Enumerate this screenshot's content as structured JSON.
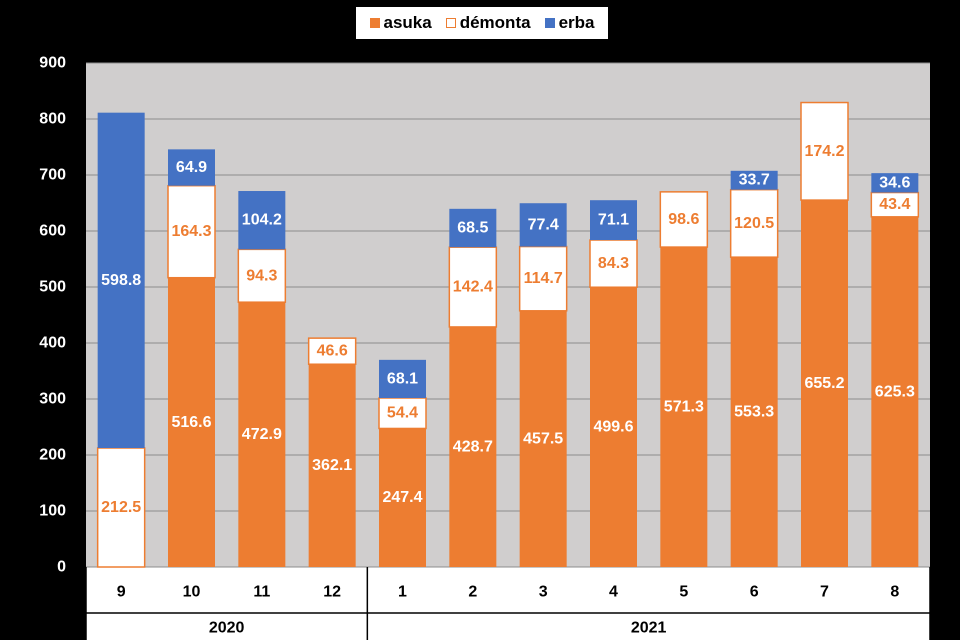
{
  "colors": {
    "asuka": "#ED7D31",
    "demonta_fill": "#FFFFFF",
    "demonta_border": "#ED7D31",
    "erba": "#4472C4",
    "plot_bg": "#D0CECE",
    "background": "#000000"
  },
  "chart_data": {
    "type": "bar",
    "stacked": true,
    "categories": [
      "9",
      "10",
      "11",
      "12",
      "1",
      "2",
      "3",
      "4",
      "5",
      "6",
      "7",
      "8"
    ],
    "year_groups": [
      {
        "label": "2020",
        "count": 4
      },
      {
        "label": "2021",
        "count": 8
      }
    ],
    "series": [
      {
        "name": "asuka",
        "values": [
          0,
          516.6,
          472.9,
          362.1,
          247.4,
          428.7,
          457.5,
          499.6,
          571.3,
          553.3,
          655.2,
          625.3
        ]
      },
      {
        "name": "démonta",
        "values": [
          212.5,
          164.3,
          94.3,
          46.6,
          54.4,
          142.4,
          114.7,
          84.3,
          98.6,
          120.5,
          174.2,
          43.4
        ]
      },
      {
        "name": "erba",
        "values": [
          598.8,
          64.9,
          104.2,
          0,
          68.1,
          68.5,
          77.4,
          71.1,
          0,
          33.7,
          0,
          34.6
        ]
      }
    ],
    "labels": [
      [
        "",
        "516.6",
        "472.9",
        "362.1",
        "247.4",
        "428.7",
        "457.5",
        "499.6",
        "571.3",
        "553.3",
        "655.2",
        "625.3"
      ],
      [
        "212.5",
        "164.3",
        "94.3",
        "46.6",
        "54.4",
        "142.4",
        "114.7",
        "84.3",
        "98.6",
        "120.5",
        "174.2",
        "43.4"
      ],
      [
        "598.8",
        "64.9",
        "104.2",
        "",
        "68.1",
        "68.5",
        "77.4",
        "71.1",
        "",
        "33.7",
        "",
        "34.6"
      ]
    ],
    "yticks": [
      "0",
      "100",
      "200",
      "300",
      "400",
      "500",
      "600",
      "700",
      "800",
      "900"
    ],
    "ylim": [
      0,
      900
    ],
    "grid": true,
    "legend": "top-center"
  }
}
